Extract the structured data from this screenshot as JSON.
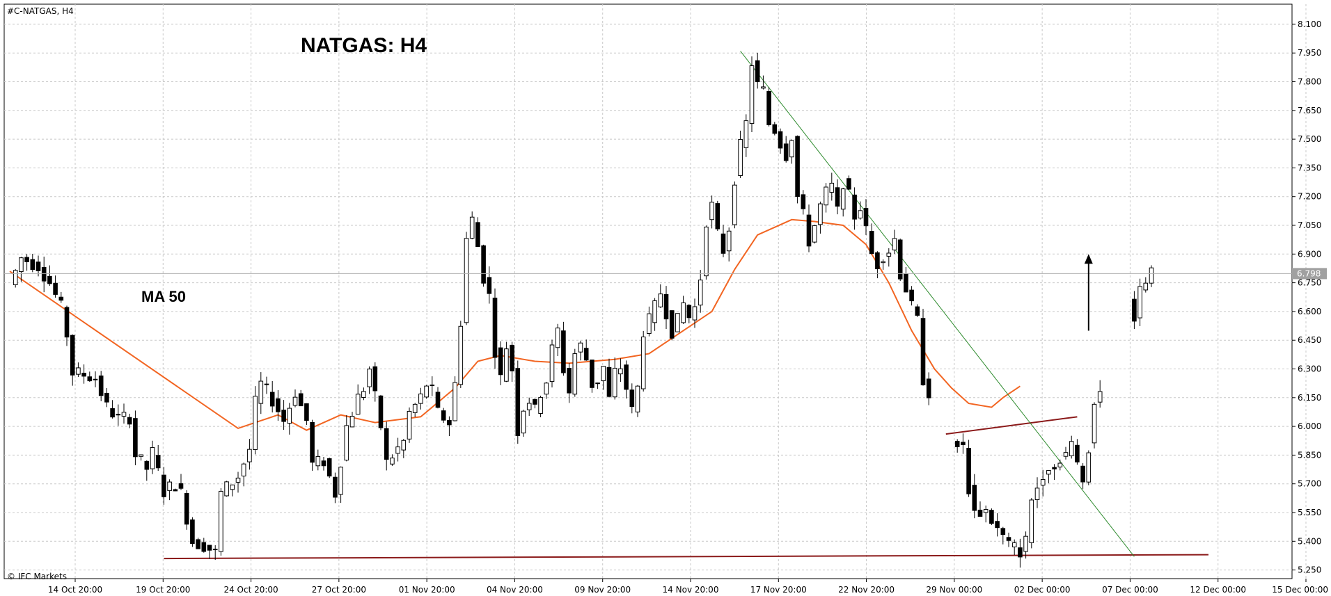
{
  "header": {
    "symbol": "#C-NATGAS, H4",
    "watermark": "© IFC Markets"
  },
  "chart_data": {
    "type": "candlestick",
    "title": "NATGAS: H4",
    "annotation": "MA 50",
    "current_price_label": "6.798",
    "current_price": 6.798,
    "ylim": [
      5.205,
      8.205
    ],
    "y_ticks": [
      "8.100",
      "7.950",
      "7.800",
      "7.650",
      "7.500",
      "7.350",
      "7.200",
      "7.050",
      "6.900",
      "6.750",
      "6.600",
      "6.450",
      "6.300",
      "6.150",
      "6.000",
      "5.850",
      "5.700",
      "5.550",
      "5.400",
      "5.250"
    ],
    "x_ticks": [
      "14 Oct 20:00",
      "19 Oct 20:00",
      "24 Oct 20:00",
      "27 Oct 20:00",
      "01 Nov 20:00",
      "04 Nov 20:00",
      "09 Nov 20:00",
      "14 Nov 20:00",
      "17 Nov 20:00",
      "22 Nov 20:00",
      "29 Nov 00:00",
      "02 Dec 00:00",
      "07 Dec 00:00",
      "12 Dec 00:00",
      "15 Dec 00:00"
    ],
    "price_anchors": [
      [
        0,
        6.74
      ],
      [
        2,
        6.88
      ],
      [
        5,
        6.84
      ],
      [
        7,
        6.75
      ],
      [
        9,
        6.62
      ],
      [
        10,
        6.48
      ],
      [
        11,
        6.28
      ],
      [
        13,
        6.27
      ],
      [
        15,
        6.25
      ],
      [
        17,
        6.1
      ],
      [
        19,
        6.04
      ],
      [
        21,
        6.05
      ],
      [
        22,
        5.85
      ],
      [
        24,
        5.78
      ],
      [
        25,
        5.86
      ],
      [
        27,
        5.66
      ],
      [
        29,
        5.7
      ],
      [
        30,
        5.65
      ],
      [
        32,
        5.4
      ],
      [
        34,
        5.38
      ],
      [
        36,
        5.34
      ],
      [
        37,
        5.65
      ],
      [
        40,
        5.74
      ],
      [
        42,
        5.88
      ],
      [
        43,
        6.12
      ],
      [
        44,
        6.22
      ],
      [
        46,
        6.14
      ],
      [
        48,
        6.03
      ],
      [
        50,
        6.18
      ],
      [
        52,
        6.03
      ],
      [
        53,
        5.8
      ],
      [
        55,
        5.82
      ],
      [
        57,
        5.65
      ],
      [
        59,
        6.0
      ],
      [
        61,
        6.15
      ],
      [
        62,
        6.2
      ],
      [
        63,
        6.3
      ],
      [
        65,
        6.0
      ],
      [
        66,
        5.81
      ],
      [
        69,
        5.92
      ],
      [
        70,
        6.07
      ],
      [
        72,
        6.15
      ],
      [
        73,
        6.22
      ],
      [
        74,
        6.18
      ],
      [
        75,
        6.07
      ],
      [
        77,
        6.02
      ],
      [
        78,
        6.22
      ],
      [
        79,
        6.55
      ],
      [
        80,
        6.98
      ],
      [
        81,
        7.08
      ],
      [
        82,
        6.94
      ],
      [
        83,
        6.78
      ],
      [
        84,
        6.68
      ],
      [
        85,
        6.4
      ],
      [
        86,
        6.25
      ],
      [
        87,
        6.42
      ],
      [
        88,
        6.3
      ],
      [
        89,
        5.98
      ],
      [
        90,
        6.1
      ],
      [
        91,
        6.14
      ],
      [
        92,
        6.08
      ],
      [
        93,
        6.18
      ],
      [
        94,
        6.24
      ],
      [
        95,
        6.4
      ],
      [
        96,
        6.5
      ],
      [
        97,
        6.3
      ],
      [
        98,
        6.18
      ],
      [
        99,
        6.38
      ],
      [
        100,
        6.42
      ],
      [
        101,
        6.35
      ],
      [
        102,
        6.22
      ],
      [
        103,
        6.24
      ],
      [
        104,
        6.31
      ],
      [
        105,
        6.14
      ],
      [
        106,
        6.28
      ],
      [
        107,
        6.31
      ],
      [
        108,
        6.2
      ],
      [
        109,
        6.08
      ],
      [
        110,
        6.2
      ],
      [
        111,
        6.5
      ],
      [
        112,
        6.55
      ],
      [
        113,
        6.62
      ],
      [
        114,
        6.7
      ],
      [
        115,
        6.6
      ],
      [
        116,
        6.5
      ],
      [
        117,
        6.55
      ],
      [
        118,
        6.64
      ],
      [
        119,
        6.57
      ],
      [
        120,
        6.62
      ],
      [
        121,
        6.78
      ],
      [
        122,
        7.08
      ],
      [
        123,
        7.15
      ],
      [
        124,
        7.0
      ],
      [
        125,
        6.92
      ],
      [
        126,
        7.04
      ],
      [
        127,
        7.3
      ],
      [
        128,
        7.46
      ],
      [
        129,
        7.58
      ],
      [
        130,
        7.9
      ],
      [
        131,
        7.78
      ],
      [
        132,
        7.75
      ],
      [
        133,
        7.58
      ],
      [
        134,
        7.55
      ],
      [
        135,
        7.48
      ],
      [
        136,
        7.42
      ],
      [
        137,
        7.52
      ],
      [
        138,
        7.2
      ],
      [
        139,
        7.1
      ],
      [
        140,
        6.97
      ],
      [
        141,
        7.05
      ],
      [
        142,
        7.15
      ],
      [
        143,
        7.22
      ],
      [
        144,
        7.25
      ],
      [
        145,
        7.12
      ],
      [
        146,
        7.28
      ],
      [
        147,
        7.2
      ],
      [
        148,
        7.1
      ],
      [
        149,
        7.15
      ],
      [
        150,
        7.02
      ],
      [
        151,
        6.9
      ],
      [
        152,
        6.85
      ],
      [
        153,
        6.9
      ],
      [
        154,
        6.92
      ],
      [
        155,
        6.98
      ],
      [
        156,
        6.8
      ],
      [
        157,
        6.72
      ],
      [
        158,
        6.62
      ],
      [
        159,
        6.55
      ],
      [
        160,
        6.25
      ],
      [
        161,
        6.18
      ],
      [
        166,
        5.92
      ],
      [
        167,
        5.88
      ],
      [
        168,
        5.68
      ],
      [
        169,
        5.55
      ],
      [
        171,
        5.56
      ],
      [
        173,
        5.46
      ],
      [
        175,
        5.38
      ],
      [
        177,
        5.35
      ],
      [
        178,
        5.4
      ],
      [
        179,
        5.62
      ],
      [
        180,
        5.68
      ],
      [
        181,
        5.76
      ],
      [
        182,
        5.8
      ],
      [
        183,
        5.78
      ],
      [
        184,
        5.84
      ],
      [
        185,
        5.86
      ],
      [
        186,
        5.9
      ],
      [
        187,
        5.8
      ],
      [
        188,
        5.72
      ],
      [
        189,
        5.9
      ],
      [
        190,
        6.12
      ],
      [
        191,
        6.2
      ],
      [
        197,
        6.58
      ],
      [
        198,
        6.7
      ],
      [
        199,
        6.76
      ],
      [
        200,
        6.798
      ]
    ],
    "gaps": [
      [
        161,
        166
      ],
      [
        191,
        197
      ]
    ],
    "ma50": [
      [
        0,
        6.81
      ],
      [
        40,
        5.99
      ],
      [
        47,
        6.06
      ],
      [
        52,
        5.98
      ],
      [
        58,
        6.06
      ],
      [
        64,
        6.02
      ],
      [
        72,
        6.05
      ],
      [
        78,
        6.2
      ],
      [
        82,
        6.34
      ],
      [
        86,
        6.37
      ],
      [
        92,
        6.34
      ],
      [
        98,
        6.33
      ],
      [
        106,
        6.35
      ],
      [
        112,
        6.38
      ],
      [
        118,
        6.5
      ],
      [
        123,
        6.6
      ],
      [
        127,
        6.82
      ],
      [
        131,
        7.0
      ],
      [
        137,
        7.08
      ],
      [
        141,
        7.07
      ],
      [
        146,
        7.05
      ],
      [
        150,
        6.95
      ],
      [
        154,
        6.75
      ],
      [
        158,
        6.5
      ],
      [
        162,
        6.3
      ],
      [
        165,
        6.2
      ],
      [
        168,
        6.12
      ],
      [
        172,
        6.1
      ],
      [
        174,
        6.15
      ],
      [
        177,
        6.21
      ]
    ],
    "lines": [
      {
        "name": "support",
        "color": "#8b1a1a",
        "points": [
          [
            27,
            5.31
          ],
          [
            210,
            5.33
          ]
        ]
      },
      {
        "name": "neckline",
        "color": "#8b1a1a",
        "points": [
          [
            164,
            5.96
          ],
          [
            187,
            6.05
          ]
        ]
      },
      {
        "name": "trendline",
        "color": "#2e8b2e",
        "points": [
          [
            128,
            7.96
          ],
          [
            197,
            5.32
          ]
        ]
      }
    ],
    "arrow": {
      "x": 189,
      "from": 6.5,
      "to": 6.9
    },
    "grid": true,
    "colors": {
      "up": "#ffffff",
      "down": "#000000",
      "ma": "#f26522",
      "support": "#8b1a1a",
      "trend": "#2e8b2e",
      "grid": "#c8c8c8"
    }
  }
}
